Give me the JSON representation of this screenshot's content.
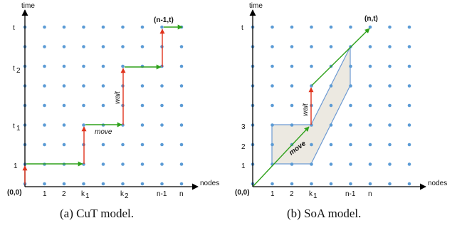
{
  "panel_a": {
    "axis_y": "time",
    "axis_x": "nodes",
    "origin": "(0,0)",
    "y_ticks": [
      "1",
      "t",
      "t",
      "t"
    ],
    "y_subs": [
      "",
      "1",
      "2",
      ""
    ],
    "x_ticks": [
      "1",
      "2",
      "k",
      "k",
      "n-1",
      "n"
    ],
    "x_subs": [
      "",
      "",
      "1",
      "2",
      "",
      ""
    ],
    "end_label": "(n-1,t)",
    "move_label": "move",
    "wait_label": "wait",
    "caption": "(a) CuT model."
  },
  "panel_b": {
    "axis_y": "time",
    "axis_x": "nodes",
    "origin": "(0,0)",
    "y_ticks": [
      "1",
      "2",
      "3",
      "t"
    ],
    "x_ticks": [
      "1",
      "2",
      "k",
      "n-1",
      "n"
    ],
    "x_subs": [
      "",
      "",
      "1",
      "",
      ""
    ],
    "end_label": "(n,t)",
    "move_label": "move",
    "wait_label": "wait",
    "caption": "(b) SoA model."
  },
  "colors": {
    "dot": "#5b9bd5",
    "move_arrow": "#2ea11a",
    "wait_arrow": "#e0321c",
    "region_fill": "#ece9e1",
    "region_stroke": "#6d9ad3",
    "axis": "#000000"
  }
}
